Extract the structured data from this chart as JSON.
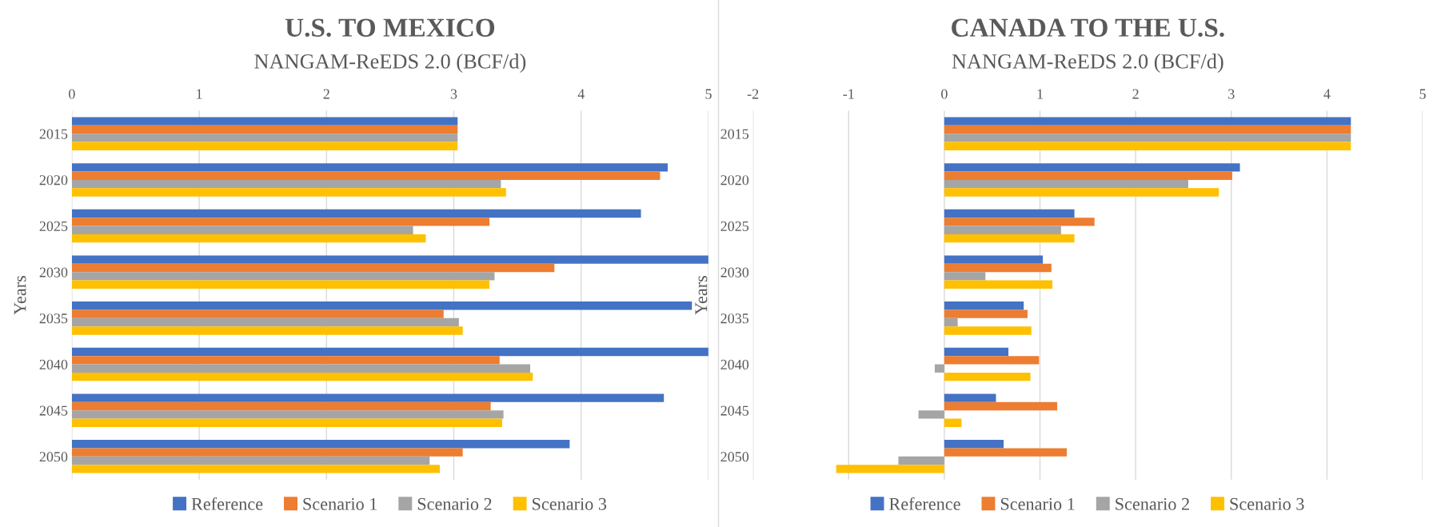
{
  "chart_data": [
    {
      "type": "bar",
      "orientation": "horizontal",
      "title": "U.S. TO MEXICO",
      "subtitle": "NANGAM-ReEDS 2.0 (BCF/d)",
      "ylabel": "Years",
      "categories": [
        "2015",
        "2020",
        "2025",
        "2030",
        "2035",
        "2040",
        "2045",
        "2050"
      ],
      "series": [
        {
          "name": "Reference",
          "color": "#4472c4",
          "values": [
            3.03,
            4.68,
            4.47,
            5.0,
            4.87,
            5.0,
            4.65,
            3.91
          ]
        },
        {
          "name": "Scenario 1",
          "color": "#ed7d31",
          "values": [
            3.03,
            4.62,
            3.28,
            3.79,
            2.92,
            3.36,
            3.29,
            3.07
          ]
        },
        {
          "name": "Scenario 2",
          "color": "#a5a5a5",
          "values": [
            3.03,
            3.37,
            2.68,
            3.32,
            3.04,
            3.6,
            3.39,
            2.81
          ]
        },
        {
          "name": "Scenario 3",
          "color": "#ffc000",
          "values": [
            3.03,
            3.41,
            2.78,
            3.28,
            3.07,
            3.62,
            3.38,
            2.89
          ]
        }
      ],
      "xlim": [
        0,
        5
      ],
      "xticks": [
        0,
        1,
        2,
        3,
        4,
        5
      ],
      "grid": "x",
      "legend": "bottom"
    },
    {
      "type": "bar",
      "orientation": "horizontal",
      "title": "CANADA TO THE U.S.",
      "subtitle": "NANGAM-ReEDS 2.0 (BCF/d)",
      "ylabel": "Years",
      "categories": [
        "2015",
        "2020",
        "2025",
        "2030",
        "2035",
        "2040",
        "2045",
        "2050"
      ],
      "series": [
        {
          "name": "Reference",
          "color": "#4472c4",
          "values": [
            4.25,
            3.09,
            1.36,
            1.03,
            0.83,
            0.67,
            0.54,
            0.62
          ]
        },
        {
          "name": "Scenario 1",
          "color": "#ed7d31",
          "values": [
            4.25,
            3.01,
            1.57,
            1.12,
            0.87,
            0.99,
            1.18,
            1.28
          ]
        },
        {
          "name": "Scenario 2",
          "color": "#a5a5a5",
          "values": [
            4.25,
            2.55,
            1.22,
            0.43,
            0.14,
            -0.1,
            -0.27,
            -0.48
          ]
        },
        {
          "name": "Scenario 3",
          "color": "#ffc000",
          "values": [
            4.25,
            2.87,
            1.36,
            1.13,
            0.91,
            0.9,
            0.18,
            -1.13
          ]
        }
      ],
      "xlim": [
        -2,
        5
      ],
      "xticks": [
        -2,
        -1,
        0,
        1,
        2,
        3,
        4,
        5
      ],
      "grid": "x",
      "legend": "bottom"
    }
  ]
}
